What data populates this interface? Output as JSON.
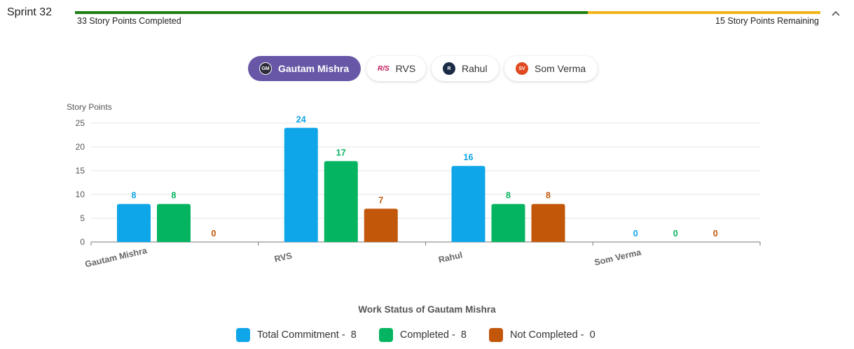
{
  "sprint": {
    "title": "Sprint 32",
    "completed_label": "33 Story Points Completed",
    "remaining_label": "15 Story Points Remaining",
    "completed_points": 33,
    "remaining_points": 15
  },
  "filters": [
    {
      "label": "Gautam Mishra",
      "avatar": "GM",
      "active": true
    },
    {
      "label": "RVS",
      "avatar": "R/S",
      "active": false
    },
    {
      "label": "Rahul",
      "avatar": "R",
      "active": false
    },
    {
      "label": "Som Verma",
      "avatar": "SV",
      "active": false
    }
  ],
  "colors": {
    "total": "#0ea5e9",
    "completed": "#05b460",
    "not_completed": "#c2570a",
    "progress_done": "#1e7e12",
    "progress_remaining": "#f1b418",
    "active_chip": "#6857a6"
  },
  "chart_data": {
    "type": "bar",
    "title": "",
    "ylabel": "Story Points",
    "xlabel": "",
    "ylim": [
      0,
      25
    ],
    "yticks": [
      0,
      5,
      10,
      15,
      20,
      25
    ],
    "grid": true,
    "categories": [
      "Gautam Mishra",
      "RVS",
      "Rahul",
      "Som Verma"
    ],
    "series": [
      {
        "name": "Total Commitment",
        "values": [
          8,
          24,
          16,
          0
        ]
      },
      {
        "name": "Completed",
        "values": [
          8,
          17,
          8,
          0
        ]
      },
      {
        "name": "Not Completed",
        "values": [
          0,
          7,
          8,
          0
        ]
      }
    ]
  },
  "legend": {
    "title": "Work Status of Gautam Mishra",
    "items": [
      {
        "label": "Total Commitment -",
        "value": "8"
      },
      {
        "label": "Completed -",
        "value": "8"
      },
      {
        "label": "Not Completed -",
        "value": "0"
      }
    ]
  }
}
